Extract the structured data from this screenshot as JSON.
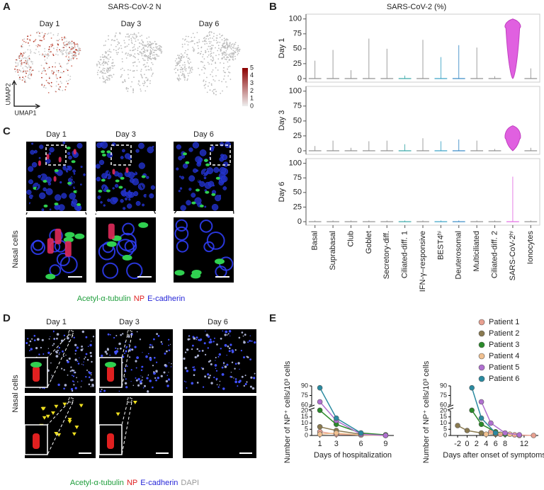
{
  "panel_labels": [
    "A",
    "B",
    "C",
    "D",
    "E"
  ],
  "panel_a": {
    "title": "SARS-CoV-2 N",
    "days": [
      "Day 1",
      "Day 3",
      "Day 6"
    ],
    "axis_labels": [
      "UMAP2",
      "UMAP1"
    ],
    "colorbar_ticks": [
      5,
      4,
      3,
      2,
      1,
      0
    ]
  },
  "panel_c": {
    "days": [
      "Day 1",
      "Day 3",
      "Day 6"
    ],
    "row_label": "Nasal cells",
    "legend": [
      {
        "text": "Acetyl-α-tubulin",
        "color": "#1f9e3c"
      },
      {
        "text": "NP",
        "color": "#e02020"
      },
      {
        "text": "E-cadherin",
        "color": "#2727d8"
      }
    ]
  },
  "panel_d": {
    "days": [
      "Day 1",
      "Day 3",
      "Day 6"
    ],
    "row_label": "Nasal cells",
    "legend": [
      {
        "text": "Acetyl-α-tubulin",
        "color": "#1f9e3c"
      },
      {
        "text": "NP",
        "color": "#e02020"
      },
      {
        "text": "E-cadherin",
        "color": "#2727d8"
      },
      {
        "text": "DAPI",
        "color": "#999999"
      }
    ]
  },
  "chart_data": [
    {
      "type": "violin",
      "title": "SARS-CoV-2 (%)",
      "categories": [
        "Basal",
        "Suprabasal",
        "Club",
        "Goblet",
        "Secretory-diff.",
        "Ciliated-diff. 1",
        "IFN-γ–responsive",
        "BEST4ʰⁱ",
        "Deuterosomal",
        "Multiciliated",
        "Ciliated-diff. 2",
        "SARS-CoV-2ʰⁱ",
        "Ionocytes"
      ],
      "colors": [
        "#888888",
        "#888888",
        "#888888",
        "#888888",
        "#888888",
        "#2aa0a0",
        "#888888",
        "#2a9ac0",
        "#2a80c0",
        "#888888",
        "#888888",
        "#e060e0",
        "#888888"
      ],
      "ylim": [
        -6,
        108
      ],
      "yticks": [
        0,
        25,
        50,
        75,
        100
      ],
      "series": [
        {
          "name": "Day 1",
          "values": [
            30,
            48,
            14,
            67,
            50,
            5,
            65,
            36,
            56,
            52,
            4,
            100,
            17
          ],
          "medians": [
            0,
            0,
            0,
            0,
            0,
            0,
            0,
            0,
            0,
            0,
            0,
            85,
            0
          ]
        },
        {
          "name": "Day 3",
          "values": [
            8,
            17,
            5,
            16,
            17,
            11,
            21,
            16,
            19,
            17,
            3,
            42,
            5
          ],
          "medians": [
            0,
            0,
            0,
            0,
            0,
            0,
            0,
            0,
            0,
            0,
            0,
            20,
            0
          ]
        },
        {
          "name": "Day 6",
          "values": [
            2,
            2,
            2,
            2,
            2,
            2,
            2,
            2,
            2,
            2,
            2,
            77,
            2
          ],
          "medians": [
            0,
            0,
            0,
            0,
            0,
            0,
            0,
            0,
            0,
            0,
            0,
            0,
            0
          ]
        }
      ]
    },
    {
      "type": "line",
      "y_label": "Number of NP⁺ cells/10³ cells",
      "x_label": "Days of hospitalization",
      "x": [
        1,
        3,
        6,
        9
      ],
      "xlim": [
        0,
        10
      ],
      "xticks": [
        1,
        3,
        6,
        9
      ],
      "ylim": [
        0,
        90
      ],
      "y_break": [
        20,
        60
      ],
      "yticks": [
        0,
        5,
        10,
        15,
        20,
        60,
        75,
        90
      ],
      "series": [
        {
          "name": "Patient 1",
          "color": "#e8a090",
          "values": [
            3,
            1,
            0.5,
            0
          ]
        },
        {
          "name": "Patient 2",
          "color": "#8a7a50",
          "values": [
            7,
            4,
            1,
            0.5
          ]
        },
        {
          "name": "Patient 3",
          "color": "#2a8a2a",
          "values": [
            23,
            9,
            2,
            0.5
          ]
        },
        {
          "name": "Patient 4",
          "color": "#f0c090",
          "values": [
            1,
            2,
            0.3,
            0
          ]
        },
        {
          "name": "Patient 5",
          "color": "#b070d0",
          "values": [
            65,
            12,
            1,
            0
          ]
        },
        {
          "name": "Patient 6",
          "color": "#2a8aa0",
          "values": [
            87,
            14,
            2,
            null
          ]
        }
      ]
    },
    {
      "type": "line",
      "y_label": "Number of NP⁺ cells/10³ cells",
      "x_label": "Days after onset of symptoms",
      "xlim": [
        -3.5,
        15
      ],
      "xticks": [
        -2,
        0,
        2,
        4,
        6,
        8,
        12
      ],
      "ylim": [
        0,
        90
      ],
      "y_break": [
        20,
        60
      ],
      "yticks": [
        0,
        5,
        10,
        15,
        20,
        60,
        75,
        90
      ],
      "series": [
        {
          "color": "#e8a090",
          "x": [
            5,
            7,
            10,
            14
          ],
          "values": [
            3,
            1,
            0.5,
            0
          ]
        },
        {
          "color": "#8a7a50",
          "x": [
            -2,
            0,
            3,
            6
          ],
          "values": [
            8,
            4,
            2,
            1
          ]
        },
        {
          "color": "#2a8a2a",
          "x": [
            1,
            3,
            6,
            8
          ],
          "values": [
            23,
            9,
            3,
            1
          ]
        },
        {
          "color": "#f0c090",
          "x": [
            4,
            6,
            9,
            11
          ],
          "values": [
            1,
            2,
            1,
            0
          ]
        },
        {
          "color": "#b070d0",
          "x": [
            3,
            5,
            8,
            11
          ],
          "values": [
            65,
            10,
            2,
            0.5
          ]
        },
        {
          "color": "#2a8aa0",
          "x": [
            1,
            3,
            6
          ],
          "values": [
            87,
            14,
            2
          ]
        }
      ]
    }
  ]
}
